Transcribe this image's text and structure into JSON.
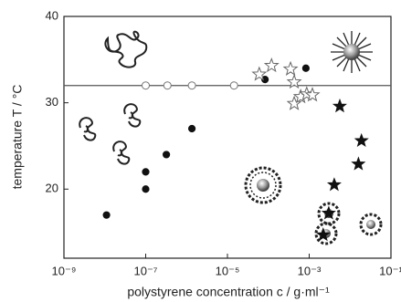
{
  "chart_data": {
    "type": "scatter",
    "x_label": "polystyrene concentration c / g·ml⁻¹",
    "y_label": "temperature T / °C",
    "xlim": [
      1e-09,
      0.1
    ],
    "ylim": [
      12,
      40
    ],
    "log_x": true,
    "xticks": [
      {
        "value": 1e-09,
        "label": "10⁻⁹"
      },
      {
        "value": 1e-07,
        "label": "10⁻⁷"
      },
      {
        "value": 1e-05,
        "label": "10⁻⁵"
      },
      {
        "value": 0.001,
        "label": "10⁻³"
      },
      {
        "value": 0.1,
        "label": "10⁻¹"
      }
    ],
    "yticks": [
      20,
      30,
      40
    ],
    "hline": 32,
    "series": [
      {
        "marker": "circle",
        "filled": true,
        "color": "#111111",
        "x": [
          1.1e-08,
          1e-07,
          1e-07,
          3.2e-07,
          1.35e-06,
          8.3e-05,
          0.00083
        ],
        "values": [
          17.0,
          22.0,
          20.0,
          24.0,
          27.0,
          32.7,
          34.0
        ]
      },
      {
        "marker": "circle",
        "filled": false,
        "color": "#777777",
        "x": [
          1e-07,
          3.4e-07,
          1.35e-06,
          1.45e-05
        ],
        "values": [
          32,
          32,
          32,
          32
        ]
      },
      {
        "marker": "star",
        "filled": false,
        "color": "#666666",
        "x": [
          6e-05,
          0.00012,
          0.00035,
          0.00043,
          0.00043,
          0.00062,
          0.00087,
          0.0012
        ],
        "values": [
          33.3,
          34.3,
          33.9,
          32.4,
          29.9,
          30.7,
          31.0,
          30.9
        ]
      },
      {
        "marker": "star",
        "filled": true,
        "color": "#111111",
        "x": [
          0.0056,
          0.0041,
          0.003,
          0.0022,
          0.019,
          0.016
        ],
        "values": [
          29.6,
          20.5,
          17.2,
          14.7,
          25.6,
          22.9
        ]
      }
    ]
  }
}
